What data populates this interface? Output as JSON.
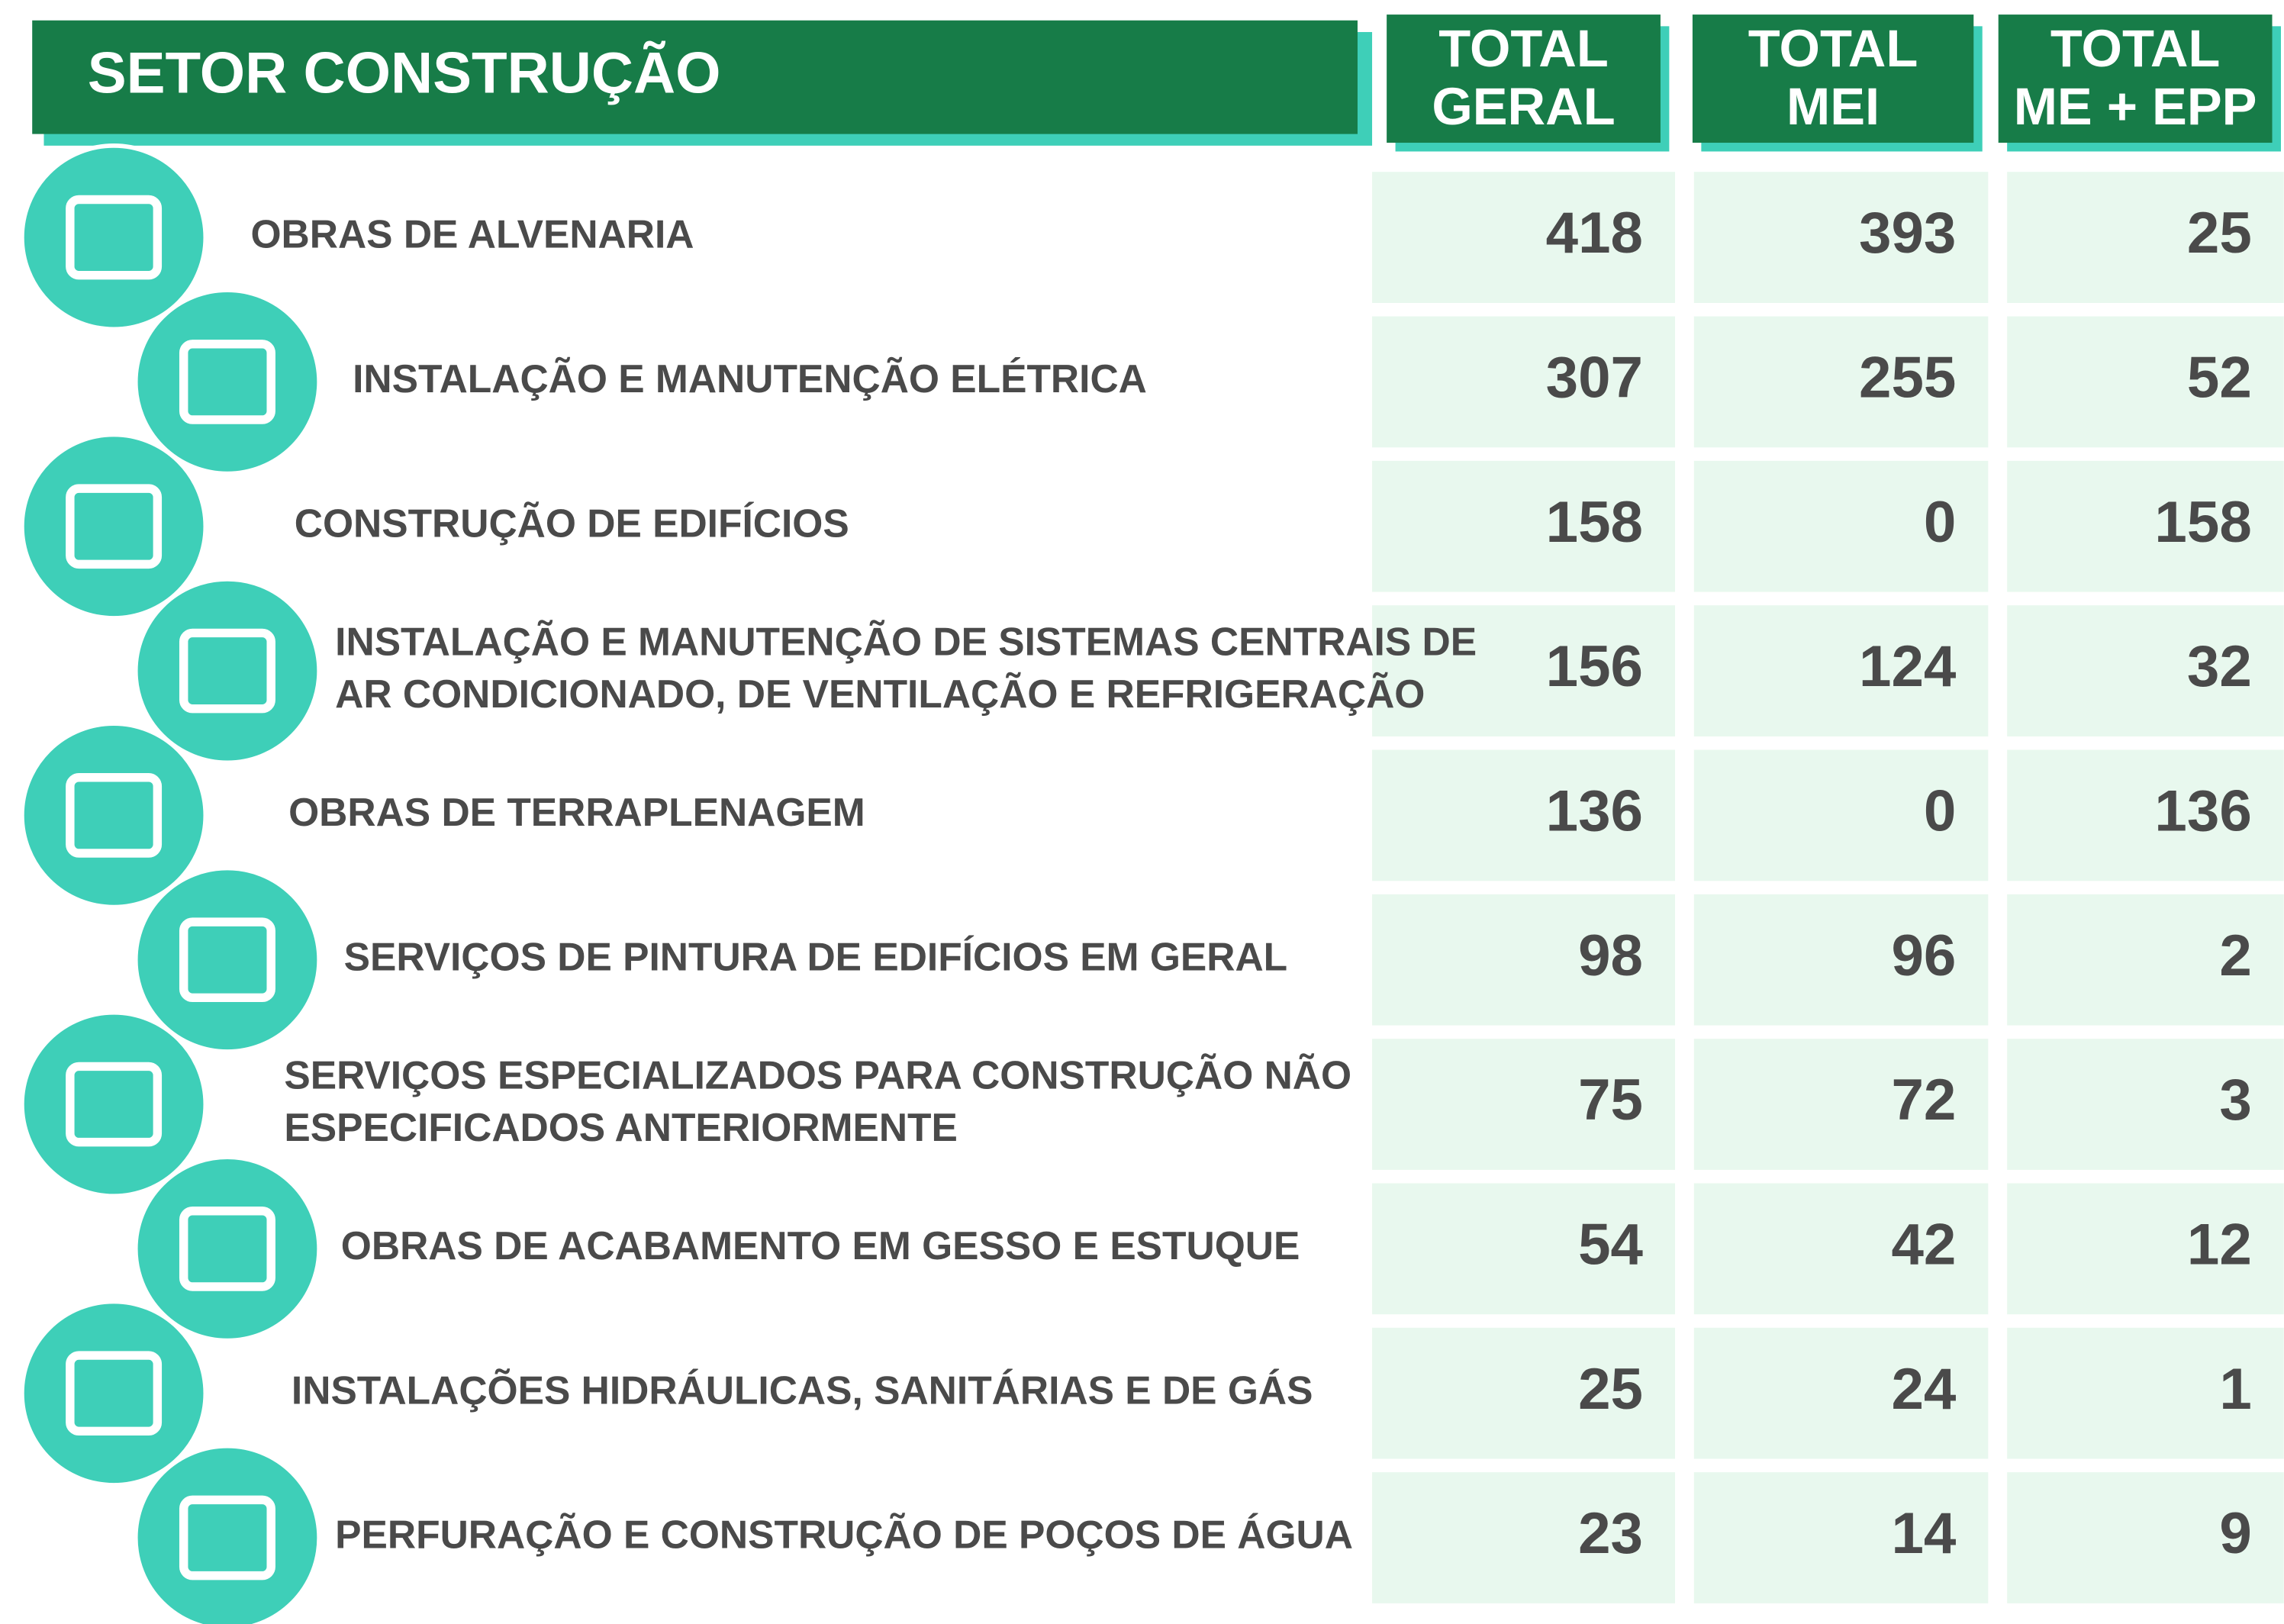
{
  "header": {
    "title": "SETOR CONSTRUÇÃO"
  },
  "columns": [
    [
      "TOTAL",
      "GERAL"
    ],
    [
      "TOTAL",
      "MEI"
    ],
    [
      "TOTAL",
      "ME + EPP"
    ]
  ],
  "rows": [
    {
      "label": [
        "OBRAS DE ALVENARIA"
      ],
      "values": [
        "418",
        "393",
        "25"
      ]
    },
    {
      "label": [
        "INSTALAÇÃO E MANUTENÇÃO ELÉTRICA"
      ],
      "values": [
        "307",
        "255",
        "52"
      ]
    },
    {
      "label": [
        "CONSTRUÇÃO DE EDIFÍCIOS"
      ],
      "values": [
        "158",
        "0",
        "158"
      ]
    },
    {
      "label": [
        "INSTALAÇÃO E MANUTENÇÃO DE SISTEMAS CENTRAIS DE",
        "AR CONDICIONADO, DE VENTILAÇÃO E REFRIGERAÇÃO"
      ],
      "values": [
        "156",
        "124",
        "32"
      ]
    },
    {
      "label": [
        "OBRAS DE TERRAPLENAGEM"
      ],
      "values": [
        "136",
        "0",
        "136"
      ]
    },
    {
      "label": [
        "SERVIÇOS DE PINTURA DE EDIFÍCIOS EM GERAL"
      ],
      "values": [
        "98",
        "96",
        "2"
      ]
    },
    {
      "label": [
        "SERVIÇOS ESPECIALIZADOS PARA CONSTRUÇÃO NÃO",
        "ESPECIFICADOS ANTERIORMENTE"
      ],
      "values": [
        "75",
        "72",
        "3"
      ]
    },
    {
      "label": [
        "OBRAS DE ACABAMENTO EM GESSO E ESTUQUE"
      ],
      "values": [
        "54",
        "42",
        "12"
      ]
    },
    {
      "label": [
        "INSTALAÇÕES HIDRÁULICAS, SANITÁRIAS E DE GÁS"
      ],
      "values": [
        "25",
        "24",
        "1"
      ]
    },
    {
      "label": [
        "PERFURAÇÃO E CONSTRUÇÃO DE POÇOS DE ÁGUA"
      ],
      "values": [
        "23",
        "14",
        "9"
      ]
    }
  ]
}
